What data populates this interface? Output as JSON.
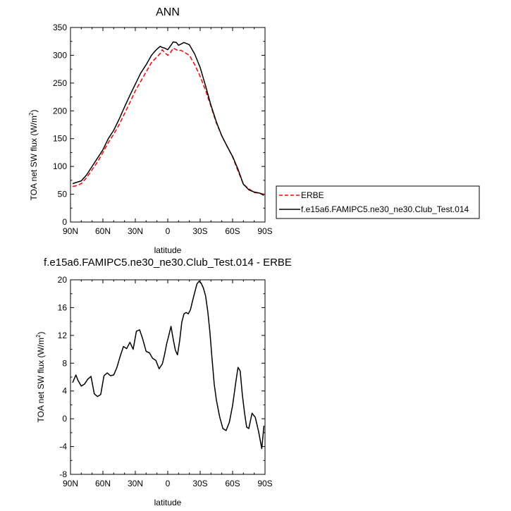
{
  "chart_data": [
    {
      "type": "line",
      "title": "ANN",
      "xlabel": "latitude",
      "ylabel_main": "TOA net SW flux (W/m",
      "ylabel_sup": "2",
      "ylabel_close": ")",
      "xlim": [
        90,
        -90
      ],
      "ylim": [
        0,
        350
      ],
      "x_ticks": [
        90,
        60,
        30,
        0,
        -30,
        -60,
        -90
      ],
      "x_tick_labels": [
        "90N",
        "60N",
        "30N",
        "0",
        "30S",
        "60S",
        "90S"
      ],
      "y_ticks": [
        0,
        50,
        100,
        150,
        200,
        250,
        300,
        350
      ],
      "y_tick_labels": [
        "0",
        "50",
        "100",
        "150",
        "200",
        "250",
        "300",
        "350"
      ],
      "legend_placement": "right",
      "series": [
        {
          "name": "ERBE",
          "color": "#ff0000",
          "dash": "dashed",
          "x": [
            88,
            85,
            80,
            75,
            70,
            65,
            60,
            55,
            50,
            45,
            40,
            35,
            30,
            25,
            20,
            15,
            12,
            10,
            7,
            5,
            3,
            0,
            -3,
            -5,
            -8,
            -10,
            -12,
            -15,
            -20,
            -25,
            -30,
            -35,
            -40,
            -45,
            -50,
            -55,
            -60,
            -65,
            -70,
            -75,
            -80,
            -85,
            -89
          ],
          "values": [
            64,
            65,
            69,
            80,
            94,
            108,
            125,
            143,
            158,
            175,
            195,
            215,
            236,
            253,
            270,
            287,
            293,
            297,
            303,
            310,
            305,
            300,
            306,
            313,
            310,
            308,
            309,
            306,
            300,
            283,
            262,
            237,
            208,
            178,
            155,
            136,
            117,
            92,
            68,
            60,
            53,
            52,
            50
          ]
        },
        {
          "name": "f.e15a6.FAMIPC5.ne30_ne30.Club_Test.014",
          "color": "#000000",
          "dash": "solid",
          "x": [
            88,
            85,
            80,
            75,
            70,
            65,
            60,
            55,
            50,
            45,
            40,
            35,
            30,
            25,
            20,
            15,
            12,
            10,
            7,
            5,
            3,
            0,
            -3,
            -5,
            -8,
            -10,
            -12,
            -15,
            -20,
            -25,
            -30,
            -35,
            -40,
            -45,
            -50,
            -55,
            -60,
            -65,
            -70,
            -75,
            -80,
            -85,
            -89
          ],
          "values": [
            69,
            71,
            74,
            85,
            100,
            115,
            130,
            150,
            165,
            185,
            207,
            228,
            248,
            268,
            283,
            300,
            307,
            311,
            316,
            314,
            313,
            310,
            318,
            324,
            323,
            318,
            320,
            323,
            319,
            302,
            278,
            245,
            210,
            180,
            155,
            136,
            118,
            95,
            68,
            58,
            54,
            52,
            48
          ]
        }
      ]
    },
    {
      "type": "line",
      "title": "f.e15a6.FAMIPC5.ne30_ne30.Club_Test.014 - ERBE",
      "xlabel": "latitude",
      "ylabel_main": "TOA net SW flux (W/m",
      "ylabel_sup": "2",
      "ylabel_close": ")",
      "xlim": [
        90,
        -90
      ],
      "ylim": [
        -8,
        20
      ],
      "x_ticks": [
        90,
        60,
        30,
        0,
        -30,
        -60,
        -90
      ],
      "x_tick_labels": [
        "90N",
        "60N",
        "30N",
        "0",
        "30S",
        "60S",
        "90S"
      ],
      "y_ticks": [
        -8,
        -4,
        0,
        4,
        8,
        12,
        16,
        20
      ],
      "y_tick_labels": [
        "-8",
        "-4",
        "0",
        "4",
        "8",
        "12",
        "16",
        "20"
      ],
      "series": [
        {
          "color": "#000000",
          "dash": "solid",
          "x": [
            88,
            85,
            83,
            80,
            77,
            74,
            71,
            68,
            65,
            62,
            59,
            56,
            53,
            50,
            47,
            44,
            41,
            38,
            35,
            32,
            29,
            26,
            23,
            20,
            17,
            14,
            11,
            8,
            5,
            3,
            1,
            -1,
            -3,
            -5,
            -7,
            -9,
            -11,
            -13,
            -15,
            -17,
            -19,
            -21,
            -23,
            -25,
            -27,
            -29,
            -31,
            -33,
            -35,
            -37,
            -39,
            -41,
            -43,
            -45,
            -48,
            -51,
            -54,
            -57,
            -60,
            -63,
            -65,
            -67,
            -69,
            -71,
            -73,
            -75,
            -78,
            -81,
            -84,
            -87,
            -89
          ],
          "values": [
            5.2,
            6.3,
            5.5,
            4.7,
            5.0,
            5.7,
            6.1,
            3.6,
            3.2,
            3.5,
            6.2,
            6.6,
            6.2,
            6.3,
            7.4,
            9.0,
            10.4,
            10.1,
            11.0,
            10.0,
            12.6,
            12.8,
            11.4,
            9.7,
            9.5,
            8.7,
            8.4,
            7.2,
            7.9,
            9.2,
            10.8,
            12.0,
            13.3,
            11.5,
            9.9,
            9.2,
            11.2,
            13.9,
            15.1,
            15.3,
            15.1,
            15.7,
            17.0,
            18.2,
            19.4,
            19.8,
            19.5,
            18.8,
            17.7,
            15.5,
            12.5,
            8.6,
            5.0,
            2.7,
            0.3,
            -1.4,
            -1.7,
            -0.5,
            1.9,
            5.3,
            7.4,
            6.9,
            3.5,
            0.9,
            -1.2,
            -1.4,
            0.8,
            0.2,
            -1.8,
            -4.3,
            -1.0
          ]
        }
      ]
    }
  ]
}
